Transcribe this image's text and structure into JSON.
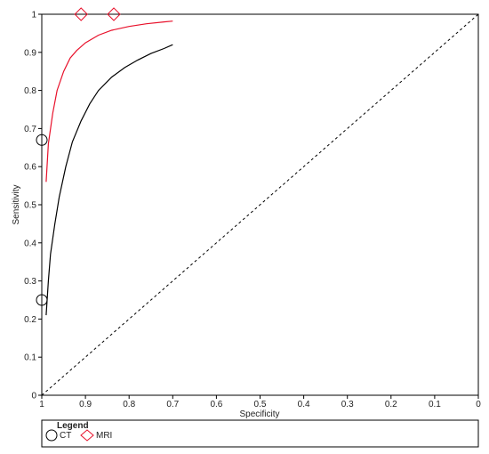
{
  "chart_data": {
    "type": "line",
    "title": "",
    "xlabel": "Specificity",
    "ylabel": "Sensitivity",
    "xlim": [
      1,
      0
    ],
    "ylim": [
      0,
      1
    ],
    "x_reversed": true,
    "x_ticks": [
      1,
      0.9,
      0.8,
      0.7,
      0.6,
      0.5,
      0.4,
      0.3,
      0.2,
      0.1,
      0
    ],
    "x_tick_labels": [
      "1",
      "0.9",
      "0.8",
      "0.7",
      "0.6",
      "0.5",
      "0.4",
      "0.3",
      "0.2",
      "0.1",
      "0"
    ],
    "y_ticks": [
      0,
      0.1,
      0.2,
      0.3,
      0.4,
      0.5,
      0.6,
      0.7,
      0.8,
      0.9,
      1
    ],
    "y_tick_labels": [
      "0",
      "0.1",
      "0.2",
      "0.3",
      "0.4",
      "0.5",
      "0.6",
      "0.7",
      "0.8",
      "0.9",
      "1"
    ],
    "grid": false,
    "series": [
      {
        "name": "CT",
        "color": "#000000",
        "marker": "circle",
        "curve": [
          {
            "x": 0.99,
            "y": 0.21
          },
          {
            "x": 0.985,
            "y": 0.3
          },
          {
            "x": 0.98,
            "y": 0.37
          },
          {
            "x": 0.97,
            "y": 0.45
          },
          {
            "x": 0.96,
            "y": 0.52
          },
          {
            "x": 0.945,
            "y": 0.6
          },
          {
            "x": 0.93,
            "y": 0.665
          },
          {
            "x": 0.91,
            "y": 0.72
          },
          {
            "x": 0.89,
            "y": 0.765
          },
          {
            "x": 0.87,
            "y": 0.8
          },
          {
            "x": 0.84,
            "y": 0.835
          },
          {
            "x": 0.81,
            "y": 0.86
          },
          {
            "x": 0.78,
            "y": 0.88
          },
          {
            "x": 0.75,
            "y": 0.897
          },
          {
            "x": 0.72,
            "y": 0.91
          },
          {
            "x": 0.7,
            "y": 0.92
          }
        ],
        "points": [
          {
            "x": 1.0,
            "y": 0.67
          },
          {
            "x": 1.0,
            "y": 0.25
          }
        ]
      },
      {
        "name": "MRI",
        "color": "#e8102a",
        "marker": "diamond",
        "curve": [
          {
            "x": 0.99,
            "y": 0.56
          },
          {
            "x": 0.985,
            "y": 0.66
          },
          {
            "x": 0.975,
            "y": 0.74
          },
          {
            "x": 0.965,
            "y": 0.8
          },
          {
            "x": 0.95,
            "y": 0.85
          },
          {
            "x": 0.935,
            "y": 0.885
          },
          {
            "x": 0.92,
            "y": 0.905
          },
          {
            "x": 0.9,
            "y": 0.925
          },
          {
            "x": 0.87,
            "y": 0.945
          },
          {
            "x": 0.84,
            "y": 0.958
          },
          {
            "x": 0.8,
            "y": 0.968
          },
          {
            "x": 0.76,
            "y": 0.975
          },
          {
            "x": 0.72,
            "y": 0.98
          },
          {
            "x": 0.7,
            "y": 0.982
          }
        ],
        "points": [
          {
            "x": 0.91,
            "y": 1.0
          },
          {
            "x": 0.835,
            "y": 1.0
          }
        ]
      }
    ],
    "reference_line": {
      "style": "dashed",
      "from": {
        "x": 1,
        "y": 0
      },
      "to": {
        "x": 0,
        "y": 1
      }
    },
    "legend": {
      "title": "Legend",
      "placement": "bottom-left",
      "items": [
        {
          "label": "CT",
          "marker": "circle",
          "color": "#000000"
        },
        {
          "label": "MRI",
          "marker": "diamond",
          "color": "#e8102a"
        }
      ]
    }
  }
}
